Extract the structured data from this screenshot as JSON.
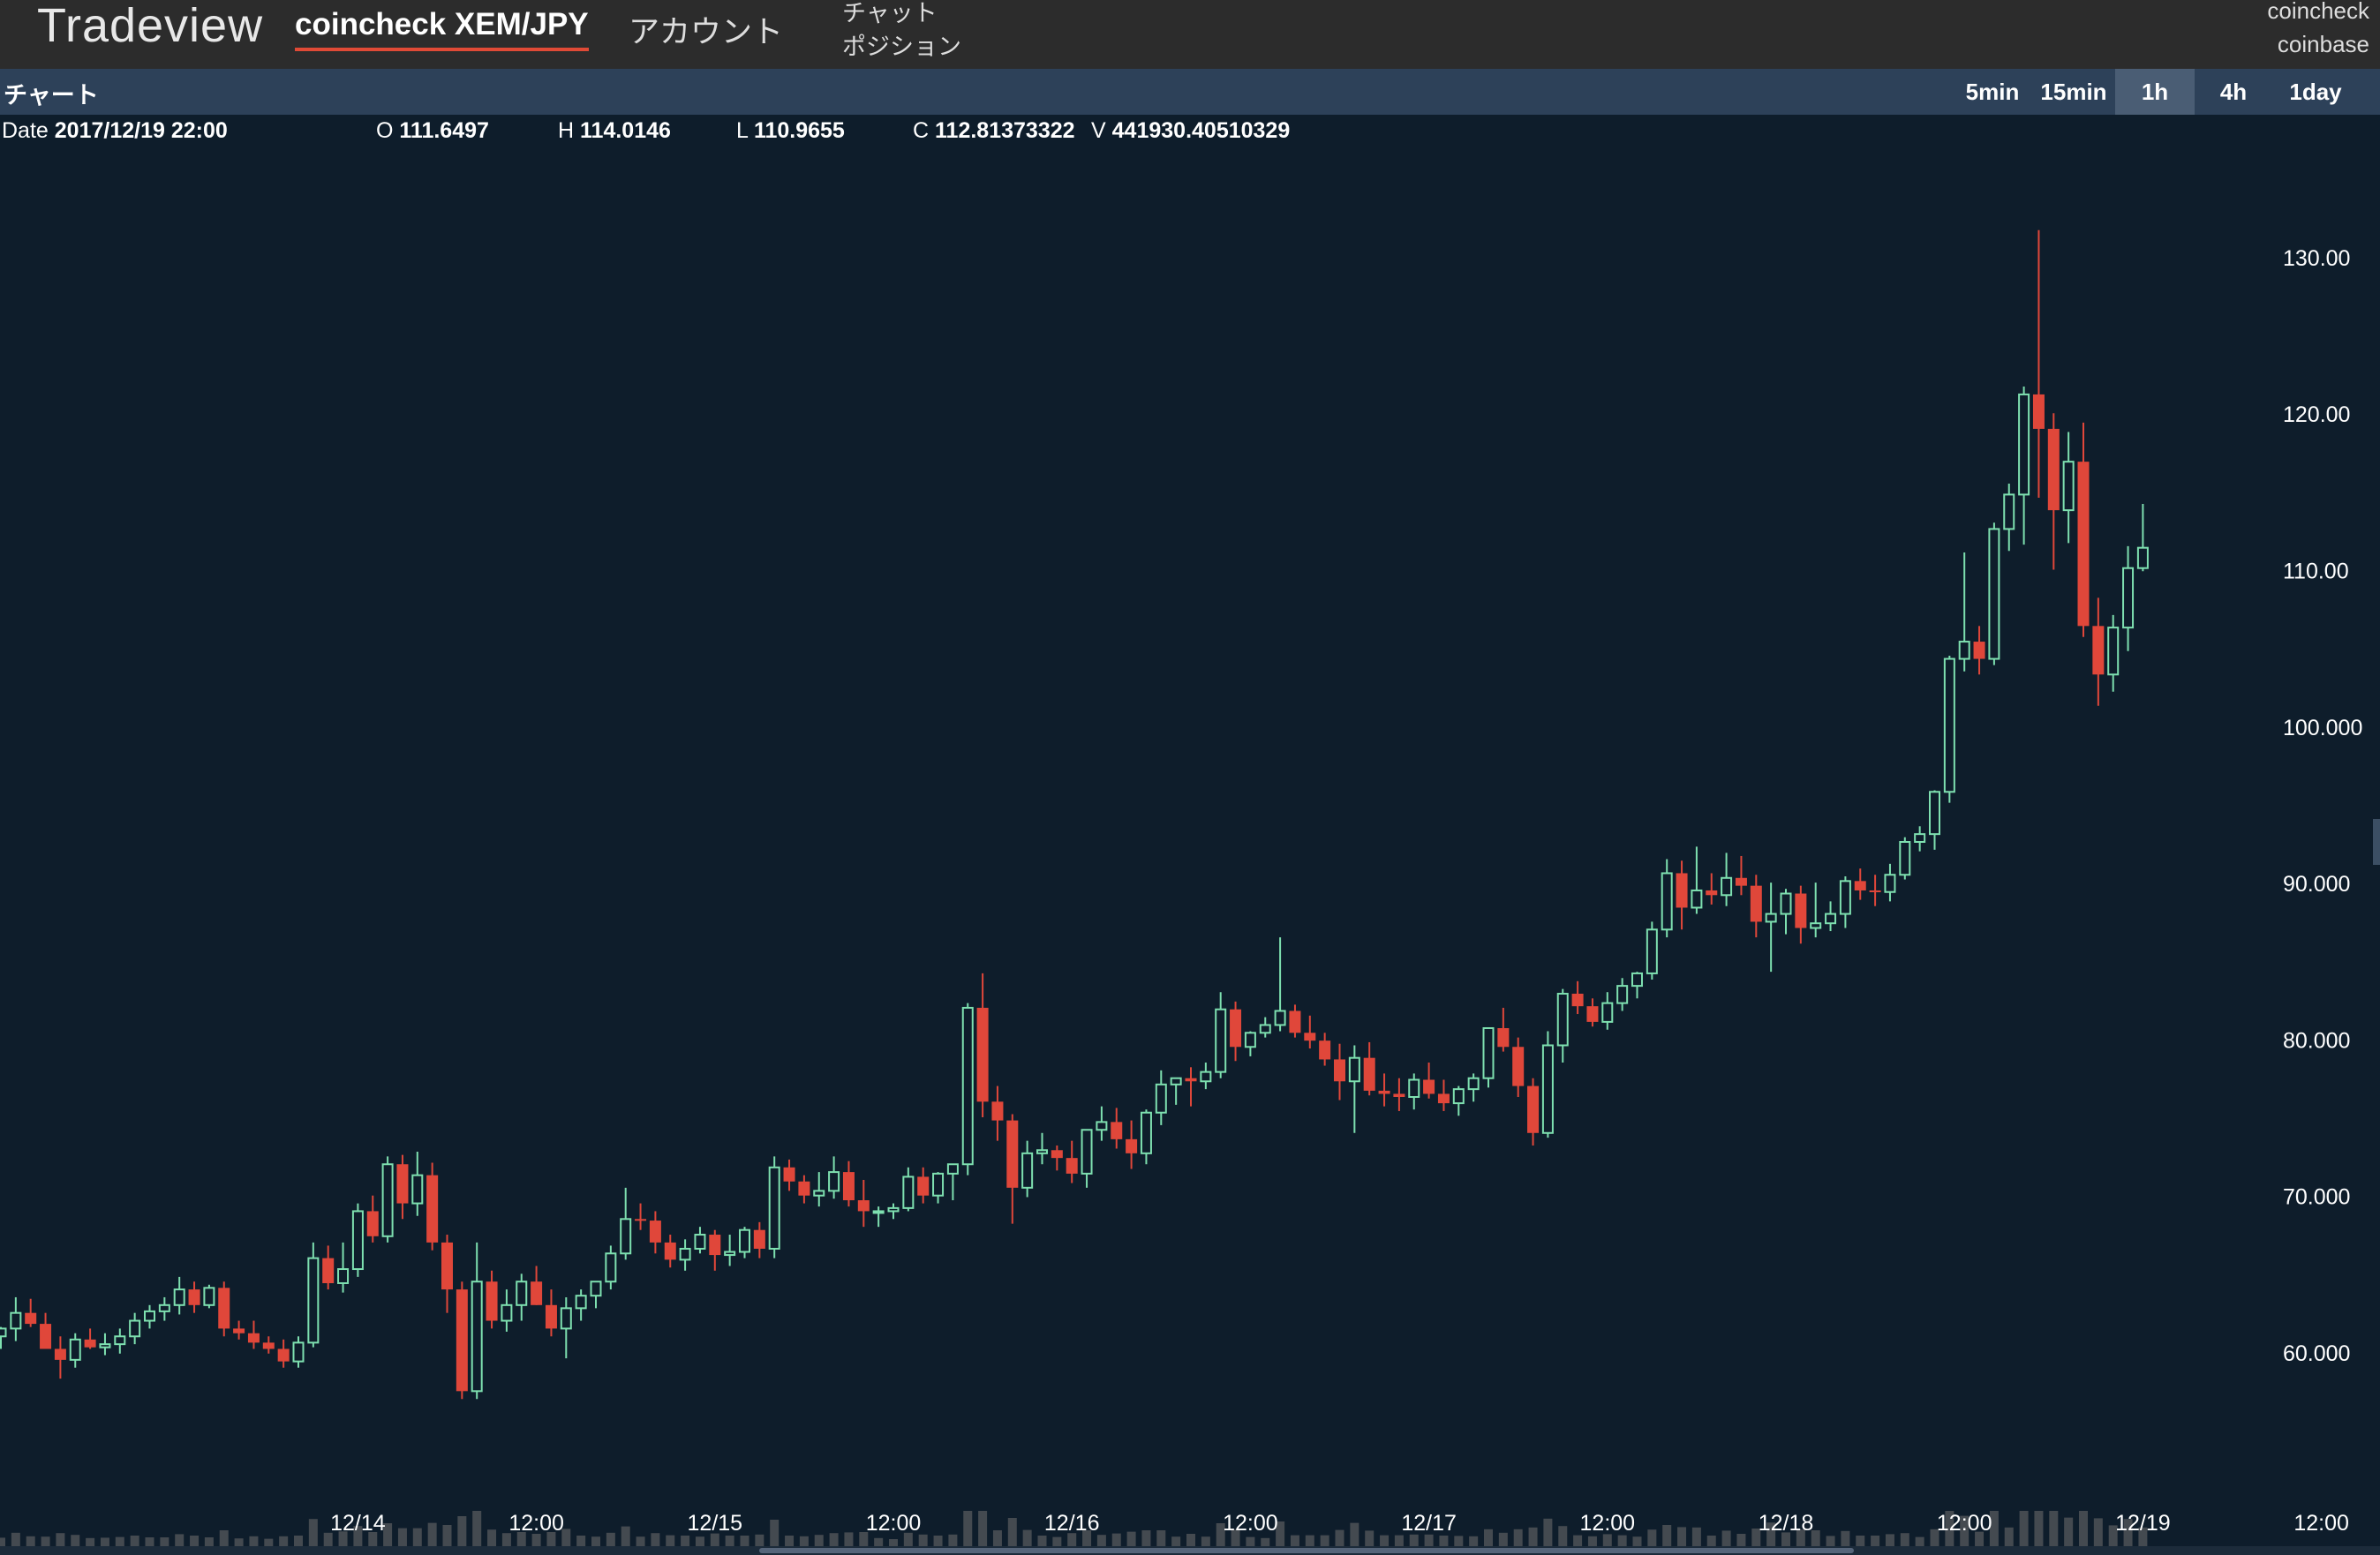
{
  "app": {
    "brand": "Tradeview"
  },
  "nav": {
    "market_tab": "coincheck XEM/JPY",
    "account_tab": "アカウント"
  },
  "menu": {
    "chat": "チャット",
    "position": "ポジション"
  },
  "exchanges": {
    "first": "coincheck",
    "second": "coinbase"
  },
  "subbar": {
    "title": "チャート"
  },
  "timeframes": {
    "tf1": "5min",
    "tf2": "15min",
    "tf3": "1h",
    "tf4": "4h",
    "tf5": "1day",
    "active": "1h"
  },
  "ohlc": {
    "date_label": "Date",
    "date": "2017/12/19 22:00",
    "open_label": "O",
    "open": "111.6497",
    "high_label": "H",
    "high": "114.0146",
    "low_label": "L",
    "low": "110.9655",
    "close_label": "C",
    "close": "112.81373322",
    "volume_label": "V",
    "volume": "441930.40510329"
  },
  "colors": {
    "up": "#7ee0b0",
    "down": "#e0473a",
    "background": "#0e1d2b",
    "volume": "#444a50"
  },
  "chart_data": {
    "type": "candlestick",
    "pair": "XEM/JPY",
    "interval": "1h",
    "ylim": [
      50,
      133
    ],
    "y_ticks": [
      "130.00",
      "120.00",
      "110.00",
      "100.000",
      "90.000",
      "80.000",
      "70.000",
      "60.000"
    ],
    "y_tick_values": [
      130,
      120,
      110,
      100,
      90,
      80,
      70,
      60
    ],
    "x_tick_labels": [
      "12/14",
      "12:00",
      "12/15",
      "12:00",
      "12/16",
      "12:00",
      "12/17",
      "12:00",
      "12/18",
      "12:00",
      "12/19",
      "12:00"
    ],
    "x_tick_hours": [
      24,
      36,
      48,
      60,
      72,
      84,
      96,
      108,
      120,
      132,
      144,
      156
    ],
    "candles": [
      [
        61.0,
        61.6,
        60.2,
        61.5
      ],
      [
        61.5,
        63.5,
        60.7,
        62.5
      ],
      [
        62.5,
        63.4,
        61.6,
        61.8
      ],
      [
        61.8,
        62.5,
        60.8,
        60.2
      ],
      [
        60.2,
        61.0,
        58.3,
        59.5
      ],
      [
        59.5,
        61.2,
        59.0,
        60.8
      ],
      [
        60.8,
        61.5,
        60.2,
        60.3
      ],
      [
        60.3,
        61.2,
        59.8,
        60.5
      ],
      [
        60.5,
        61.5,
        59.9,
        61.0
      ],
      [
        61.0,
        62.5,
        60.5,
        62.0
      ],
      [
        62.0,
        63.0,
        61.5,
        62.6
      ],
      [
        62.6,
        63.5,
        62.0,
        63.0
      ],
      [
        63.0,
        64.8,
        62.4,
        64.0
      ],
      [
        64.0,
        64.5,
        62.5,
        63.0
      ],
      [
        63.0,
        64.3,
        62.8,
        64.1
      ],
      [
        64.1,
        64.5,
        61.0,
        61.5
      ],
      [
        61.5,
        62.0,
        60.8,
        61.2
      ],
      [
        61.2,
        62.0,
        60.2,
        60.6
      ],
      [
        60.6,
        61.0,
        59.9,
        60.2
      ],
      [
        60.2,
        60.8,
        59.0,
        59.4
      ],
      [
        59.4,
        61.0,
        59.0,
        60.6
      ],
      [
        60.6,
        67.0,
        60.3,
        66.0
      ],
      [
        66.0,
        66.8,
        64.0,
        64.4
      ],
      [
        64.4,
        67.0,
        63.8,
        65.3
      ],
      [
        65.3,
        69.5,
        64.8,
        69.0
      ],
      [
        69.0,
        70.0,
        67.0,
        67.4
      ],
      [
        67.4,
        72.5,
        67.0,
        72.0
      ],
      [
        72.0,
        72.6,
        68.5,
        69.5
      ],
      [
        69.5,
        72.8,
        68.7,
        71.3
      ],
      [
        71.3,
        72.1,
        66.5,
        67.0
      ],
      [
        67.0,
        67.5,
        62.5,
        64.0
      ],
      [
        64.0,
        64.5,
        57.0,
        57.5
      ],
      [
        57.5,
        67.0,
        57.0,
        64.5
      ],
      [
        64.5,
        65.2,
        61.5,
        62.0
      ],
      [
        62.0,
        64.0,
        61.3,
        63.0
      ],
      [
        63.0,
        65.0,
        62.0,
        64.5
      ],
      [
        64.5,
        65.5,
        63.0,
        63.0
      ],
      [
        63.0,
        64.0,
        61.0,
        61.5
      ],
      [
        61.5,
        63.5,
        59.6,
        62.8
      ],
      [
        62.8,
        64.0,
        62.0,
        63.6
      ],
      [
        63.6,
        64.5,
        62.8,
        64.5
      ],
      [
        64.5,
        66.8,
        64.0,
        66.3
      ],
      [
        66.3,
        70.5,
        65.9,
        68.5
      ],
      [
        68.5,
        69.5,
        67.8,
        68.4
      ],
      [
        68.4,
        69.0,
        66.3,
        67.0
      ],
      [
        67.0,
        67.5,
        65.4,
        65.9
      ],
      [
        65.9,
        67.2,
        65.2,
        66.6
      ],
      [
        66.6,
        68.0,
        66.3,
        67.5
      ],
      [
        67.5,
        67.8,
        65.2,
        66.2
      ],
      [
        66.2,
        67.5,
        65.5,
        66.4
      ],
      [
        66.4,
        68.0,
        66.0,
        67.8
      ],
      [
        67.8,
        68.3,
        66.0,
        66.6
      ],
      [
        66.6,
        72.5,
        66.0,
        71.8
      ],
      [
        71.8,
        72.3,
        70.3,
        70.9
      ],
      [
        70.9,
        71.3,
        69.5,
        70.0
      ],
      [
        70.0,
        71.5,
        69.3,
        70.3
      ],
      [
        70.3,
        72.5,
        69.8,
        71.5
      ],
      [
        71.5,
        72.2,
        69.3,
        69.7
      ],
      [
        69.7,
        71.0,
        68.0,
        69.0
      ],
      [
        69.0,
        69.3,
        68.0,
        69.0
      ],
      [
        69.0,
        69.5,
        68.5,
        69.2
      ],
      [
        69.2,
        71.8,
        69.0,
        71.2
      ],
      [
        71.2,
        71.8,
        69.5,
        70.0
      ],
      [
        70.0,
        71.5,
        69.5,
        71.4
      ],
      [
        71.4,
        72.0,
        69.7,
        72.0
      ],
      [
        72.0,
        82.3,
        71.3,
        82.0
      ],
      [
        82.0,
        84.2,
        75.0,
        76.0
      ],
      [
        76.0,
        77.0,
        73.5,
        74.8
      ],
      [
        74.8,
        75.2,
        68.2,
        70.5
      ],
      [
        70.5,
        73.5,
        69.9,
        72.7
      ],
      [
        72.7,
        74.0,
        72.0,
        72.9
      ],
      [
        72.9,
        73.2,
        71.6,
        72.4
      ],
      [
        72.4,
        73.5,
        70.8,
        71.4
      ],
      [
        71.4,
        74.0,
        70.5,
        74.2
      ],
      [
        74.2,
        75.7,
        73.5,
        74.7
      ],
      [
        74.7,
        75.6,
        73.0,
        73.6
      ],
      [
        73.6,
        74.8,
        71.7,
        72.7
      ],
      [
        72.7,
        75.5,
        72.0,
        75.3
      ],
      [
        75.3,
        78.0,
        74.5,
        77.1
      ],
      [
        77.1,
        77.5,
        75.8,
        77.5
      ],
      [
        77.5,
        78.2,
        75.7,
        77.3
      ],
      [
        77.3,
        78.5,
        76.8,
        77.9
      ],
      [
        77.9,
        83.0,
        77.5,
        81.9
      ],
      [
        81.9,
        82.4,
        78.6,
        79.5
      ],
      [
        79.5,
        80.5,
        78.9,
        80.4
      ],
      [
        80.4,
        81.4,
        80.1,
        80.9
      ],
      [
        80.9,
        86.5,
        80.5,
        81.8
      ],
      [
        81.8,
        82.2,
        80.1,
        80.4
      ],
      [
        80.4,
        81.5,
        79.4,
        79.9
      ],
      [
        79.9,
        80.4,
        78.3,
        78.7
      ],
      [
        78.7,
        79.7,
        76.1,
        77.3
      ],
      [
        77.3,
        79.6,
        74.0,
        78.8
      ],
      [
        78.8,
        79.8,
        76.4,
        76.7
      ],
      [
        76.7,
        77.8,
        75.7,
        76.5
      ],
      [
        76.5,
        77.5,
        75.4,
        76.3
      ],
      [
        76.3,
        77.8,
        75.5,
        77.4
      ],
      [
        77.4,
        78.5,
        76.2,
        76.5
      ],
      [
        76.5,
        77.4,
        75.4,
        75.9
      ],
      [
        75.9,
        77.0,
        75.1,
        76.8
      ],
      [
        76.8,
        77.8,
        76.0,
        77.5
      ],
      [
        77.5,
        80.7,
        76.9,
        80.7
      ],
      [
        80.7,
        82.0,
        79.2,
        79.5
      ],
      [
        79.5,
        80.1,
        76.3,
        77.0
      ],
      [
        77.0,
        77.5,
        73.2,
        74.0
      ],
      [
        74.0,
        80.5,
        73.7,
        79.6
      ],
      [
        79.6,
        83.2,
        78.5,
        82.9
      ],
      [
        82.9,
        83.7,
        81.6,
        82.1
      ],
      [
        82.1,
        82.6,
        80.8,
        81.1
      ],
      [
        81.1,
        83.0,
        80.6,
        82.3
      ],
      [
        82.3,
        83.9,
        81.8,
        83.4
      ],
      [
        83.4,
        84.3,
        82.6,
        84.2
      ],
      [
        84.2,
        87.5,
        83.8,
        87.0
      ],
      [
        87.0,
        91.5,
        86.5,
        90.6
      ],
      [
        90.6,
        91.4,
        87.0,
        88.4
      ],
      [
        88.4,
        92.3,
        88.0,
        89.5
      ],
      [
        89.5,
        90.6,
        88.6,
        89.2
      ],
      [
        89.2,
        91.9,
        88.5,
        90.3
      ],
      [
        90.3,
        91.7,
        89.2,
        89.8
      ],
      [
        89.8,
        90.5,
        86.5,
        87.5
      ],
      [
        87.5,
        90.0,
        84.3,
        88.0
      ],
      [
        88.0,
        89.6,
        86.7,
        89.3
      ],
      [
        89.3,
        89.8,
        86.1,
        87.1
      ],
      [
        87.1,
        90.0,
        86.5,
        87.4
      ],
      [
        87.4,
        88.8,
        86.9,
        88.0
      ],
      [
        88.0,
        90.4,
        87.1,
        90.1
      ],
      [
        90.1,
        90.9,
        88.9,
        89.5
      ],
      [
        89.5,
        90.5,
        88.5,
        89.4
      ],
      [
        89.4,
        91.2,
        88.8,
        90.5
      ],
      [
        90.5,
        92.9,
        90.2,
        92.6
      ],
      [
        92.6,
        93.6,
        92.0,
        93.1
      ],
      [
        93.1,
        95.9,
        92.1,
        95.8
      ],
      [
        95.8,
        104.5,
        95.1,
        104.3
      ],
      [
        104.3,
        111.1,
        103.5,
        105.4
      ],
      [
        105.4,
        106.4,
        103.3,
        104.3
      ],
      [
        104.3,
        113.0,
        103.9,
        112.6
      ],
      [
        112.6,
        115.5,
        111.2,
        114.8
      ],
      [
        114.8,
        121.7,
        111.6,
        121.2
      ],
      [
        121.2,
        131.7,
        114.6,
        119.0
      ],
      [
        119.0,
        120.0,
        110.0,
        113.8
      ],
      [
        113.8,
        118.8,
        111.7,
        116.9
      ],
      [
        116.9,
        119.4,
        105.7,
        106.4
      ],
      [
        106.4,
        108.2,
        101.3,
        103.3
      ],
      [
        103.3,
        107.1,
        102.2,
        106.3
      ],
      [
        106.3,
        111.5,
        104.8,
        110.1
      ],
      [
        110.1,
        114.2,
        109.9,
        111.4
      ]
    ]
  }
}
